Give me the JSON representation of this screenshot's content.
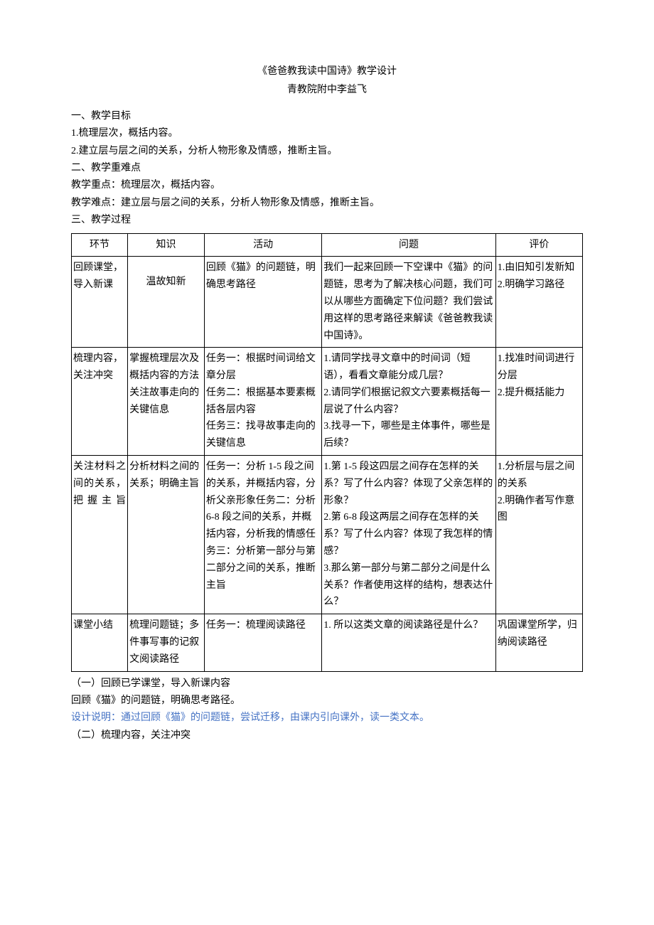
{
  "title": "《爸爸教我读中国诗》教学设计",
  "subtitle": "青教院附中李益飞",
  "pre": {
    "h1": "一、教学目标",
    "l1": "1.梳理层次，概括内容。",
    "l2": "2.建立层与层之间的关系，分析人物形象及情感，推断主旨。",
    "h2": "二、教学重难点",
    "l3": "教学重点：梳理层次，概括内容。",
    "l4": "教学难点：建立层与层之间的关系，分析人物形象及情感，推断主旨。",
    "h3": "三、教学过程"
  },
  "table": {
    "headers": {
      "c1": "环节",
      "c2": "知识",
      "c3": "活动",
      "c4": "问题",
      "c5": "评价"
    },
    "rows": [
      {
        "c1": "回顾课堂，导入新课",
        "c2": "温故知新",
        "c3": "回顾《猫》的问题链，明确思考路径",
        "c4": "我们一起来回顾一下空课中《猫》的问题链，思考为了解决核心问题，我们可以从哪些方面确定下位问题？我们尝试用这样的思考路径来解读《爸爸教我读中国诗》。",
        "c5": "1.由旧知引发新知\n2.明确学习路径"
      },
      {
        "c1": "梳理内容，关注冲突",
        "c2": "掌握梳理层次及概括内容的方法关注故事走向的关键信息",
        "c3": "任务一：根据时间词给文章分层\n任务二：根据基本要素概括各层内容\n任务三：找寻故事走向的关键信息",
        "c4": "1.请同学找寻文章中的时间词（短语），看看文章能分成几层？\n2.请同学们根据记叙文六要素概括每一层说了什么内容？\n3.找寻一下，哪些是主体事件，哪些是后续？",
        "c5": "1.找准时间词进行分层\n2.提升概括能力"
      },
      {
        "c1": "关注材料之间的关系，把握主旨",
        "c2": "分析材料之间的关系；明确主旨",
        "c3": "任务一：分析 1-5 段之间的关系，并概括内容，分析父亲形象任务二：分析6-8 段之间的关系，并概括内容，分析我的情感任务三：分析第一部分与第二部分之间的关系，推断主旨",
        "c4": "1.第 1-5 段这四层之间存在怎样的关系？写了什么内容？体现了父亲怎样的形象？\n2.第 6-8 段这两层之间存在怎样的关系？写了什么内容？体现了我怎样的情感？\n3.那么第一部分与第二部分之间是什么关系？作者使用这样的结构，想表达什么？",
        "c5": "1.分析层与层之间的关系\n2.明确作者写作意图"
      },
      {
        "c1": "课堂小结",
        "c2": "梳理问题链；多件事写事的记叙文阅读路径",
        "c3": "任务一：梳理阅读路径",
        "c4": "1. 所以这类文章的阅读路径是什么？",
        "c5": "巩固课堂所学，归纳阅读路径"
      }
    ]
  },
  "post": {
    "l1": "（一）回顾已学课堂，导入新课内容",
    "l2": "回顾《猫》的问题链，明确思考路径。",
    "l3": "设计说明：通过回顾《猫》的问题链，尝试迁移，由课内引向课外，读一类文本。",
    "l4": "（二）梳理内容，关注冲突"
  },
  "colors": {
    "text": "#000000",
    "design_note": "#4472c4",
    "background": "#ffffff",
    "border": "#000000"
  }
}
